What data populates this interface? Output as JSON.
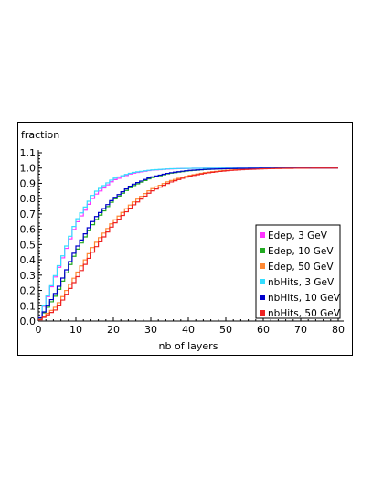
{
  "chart_data": {
    "type": "line",
    "ylabel": "fraction",
    "xlabel": "nb of layers",
    "xlim": [
      0,
      80
    ],
    "ylim": [
      0,
      1.1
    ],
    "x_ticks": [
      0,
      10,
      20,
      30,
      40,
      50,
      60,
      70,
      80
    ],
    "x_tick_labels": [
      "0",
      "10",
      "20",
      "30",
      "40",
      "50",
      "60",
      "70",
      "80"
    ],
    "y_ticks": [
      0,
      0.1,
      0.2,
      0.3,
      0.4,
      0.5,
      0.6,
      0.7,
      0.8,
      0.9,
      1.0,
      1.1
    ],
    "y_tick_labels": [
      "0.0",
      "0.1",
      "0.2",
      "0.3",
      "0.4",
      "0.5",
      "0.6",
      "0.7",
      "0.8",
      "0.9",
      "1.0",
      "1.1"
    ],
    "grid": false,
    "legend_position": "bottom-right",
    "x": [
      0,
      5,
      10,
      15,
      20,
      25,
      30,
      35,
      40,
      45,
      50,
      55,
      60,
      65,
      70,
      75,
      80
    ],
    "series": [
      {
        "name": "Edep, 3 GeV",
        "color": "#ff33ff",
        "values": [
          0.0,
          0.32,
          0.63,
          0.82,
          0.92,
          0.965,
          0.985,
          0.994,
          0.998,
          0.999,
          1.0,
          1.0,
          1.0,
          1.0,
          1.0,
          1.0,
          1.0
        ]
      },
      {
        "name": "Edep, 10 GeV",
        "color": "#22aa22",
        "values": [
          0.0,
          0.18,
          0.45,
          0.65,
          0.79,
          0.88,
          0.935,
          0.965,
          0.982,
          0.991,
          0.996,
          0.998,
          0.999,
          1.0,
          1.0,
          1.0,
          1.0
        ]
      },
      {
        "name": "Edep, 50 GeV",
        "color": "#ff8833",
        "values": [
          0.0,
          0.1,
          0.3,
          0.5,
          0.65,
          0.77,
          0.86,
          0.915,
          0.95,
          0.972,
          0.985,
          0.992,
          0.996,
          0.998,
          0.999,
          1.0,
          1.0
        ]
      },
      {
        "name": "nbHits, 3 GeV",
        "color": "#33ddff",
        "values": [
          0.0,
          0.33,
          0.65,
          0.84,
          0.93,
          0.97,
          0.987,
          0.995,
          0.998,
          0.999,
          1.0,
          1.0,
          1.0,
          1.0,
          1.0,
          1.0,
          1.0
        ]
      },
      {
        "name": "nbHits, 10 GeV",
        "color": "#0000cc",
        "values": [
          0.0,
          0.2,
          0.47,
          0.67,
          0.8,
          0.89,
          0.94,
          0.968,
          0.984,
          0.992,
          0.996,
          0.998,
          0.999,
          1.0,
          1.0,
          1.0,
          1.0
        ]
      },
      {
        "name": "nbHits, 50 GeV",
        "color": "#ee2222",
        "values": [
          0.0,
          0.08,
          0.27,
          0.47,
          0.63,
          0.75,
          0.845,
          0.905,
          0.945,
          0.968,
          0.982,
          0.99,
          0.995,
          0.998,
          0.999,
          1.0,
          1.0
        ]
      }
    ]
  }
}
